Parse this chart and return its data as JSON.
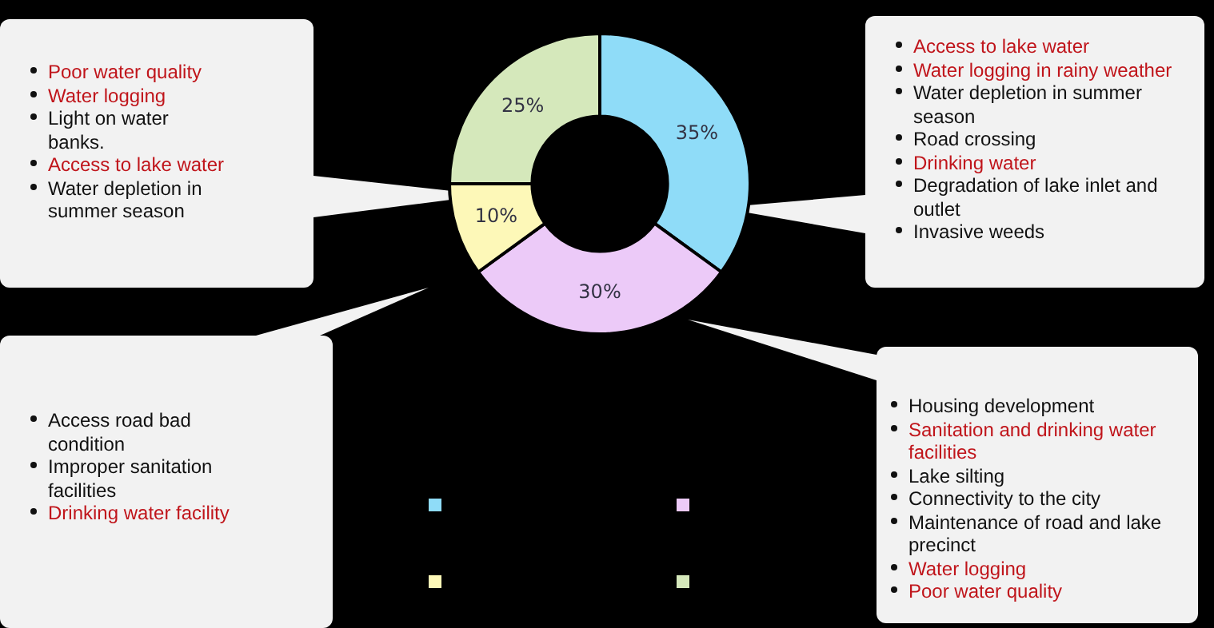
{
  "chart_data": {
    "type": "donut",
    "categories": [
      null,
      null,
      null,
      null
    ],
    "values": [
      35,
      30,
      10,
      25
    ],
    "colors": [
      "#8fdcf8",
      "#eccaf8",
      "#fdf8b8",
      "#d5e8bb"
    ],
    "value_labels": [
      "35%",
      "30%",
      "10%",
      "25%"
    ],
    "annotations": [
      "Poor water quality\nWater logging\nLight on water banks.\nAccess to lake water\nWater depletion in summer season",
      "Access to lake water\nWater logging in rainy weather\nWater depletion in summer season\nRoad crossing\nDrinking water\nDegradation of lake inlet and outlet\n Invasive weeds",
      "Access road bad condition\nImproper sanitation facilities\nDrinking water facility",
      "Housing development\nSanitation and drinking water facilities\nLake silting\nConnectivity to the city\nMaintenance of road and lake precinct\nWater logging\nPoor water quality"
    ]
  }
}
